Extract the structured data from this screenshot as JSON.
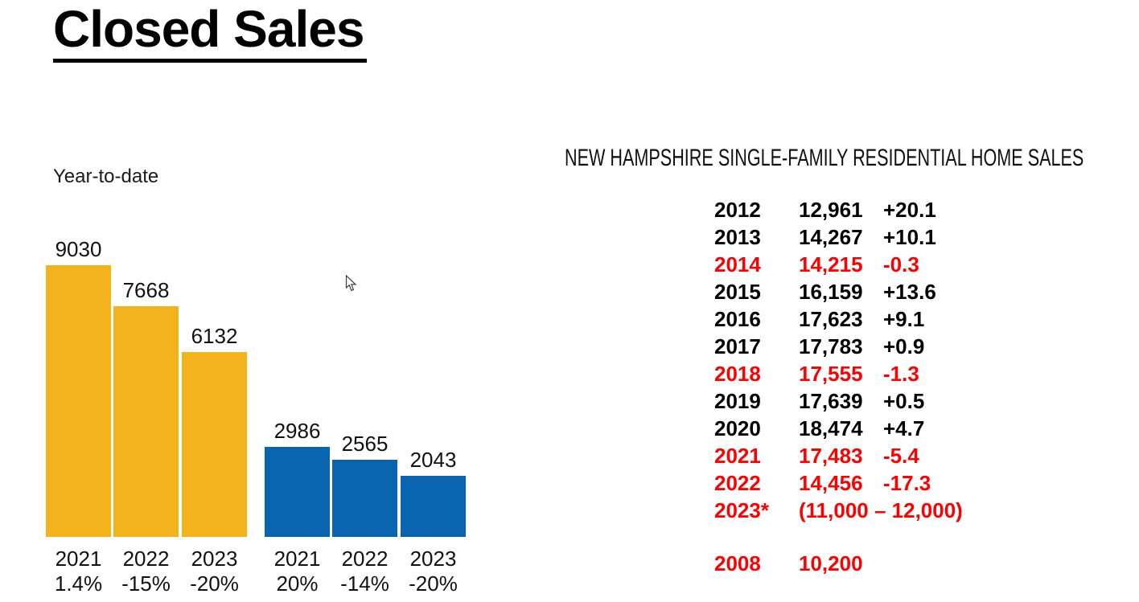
{
  "slide_title": "Closed Sales",
  "chart_data": {
    "type": "bar",
    "title": "Closed Sales",
    "subtitle": "Year-to-date",
    "ylim": [
      0,
      9030
    ],
    "axes_hidden": true,
    "grid": false,
    "legend": "none",
    "series": [
      {
        "group": "year-to-date-gold",
        "color": "#F2B31C",
        "bars": [
          {
            "year": "2021",
            "value": 9030,
            "pct_change_label": "1.4%"
          },
          {
            "year": "2022",
            "value": 7668,
            "pct_change_label": "-15%"
          },
          {
            "year": "2023",
            "value": 6132,
            "pct_change_label": "-20%"
          }
        ]
      },
      {
        "group": "year-to-date-blue",
        "color": "#0965AF",
        "bars": [
          {
            "year": "2021",
            "value": 2986,
            "pct_change_label": "20%"
          },
          {
            "year": "2022",
            "value": 2565,
            "pct_change_label": "-14%"
          },
          {
            "year": "2023",
            "value": 2043,
            "pct_change_label": "-20%"
          }
        ]
      }
    ]
  },
  "sales_table": {
    "heading": "NEW HAMPSHIRE SINGLE-FAMILY RESIDENTIAL HOME SALES",
    "text_color": "#000000",
    "highlight_color": "#FF0000",
    "rows": [
      {
        "year": "2012",
        "value": "12,961",
        "change": "+20.1",
        "highlight": false
      },
      {
        "year": "2013",
        "value": "14,267",
        "change": "+10.1",
        "highlight": false
      },
      {
        "year": "2014",
        "value": "14,215",
        "change": "-0.3",
        "highlight": true
      },
      {
        "year": "2015",
        "value": "16,159",
        "change": "+13.6",
        "highlight": false
      },
      {
        "year": "2016",
        "value": "17,623",
        "change": "+9.1",
        "highlight": false
      },
      {
        "year": "2017",
        "value": "17,783",
        "change": "+0.9",
        "highlight": false
      },
      {
        "year": "2018",
        "value": "17,555",
        "change": "-1.3",
        "highlight": true
      },
      {
        "year": "2019",
        "value": "17,639",
        "change": "+0.5",
        "highlight": false
      },
      {
        "year": "2020",
        "value": "18,474",
        "change": "+4.7",
        "highlight": false
      },
      {
        "year": "2021",
        "value": "17,483",
        "change": "-5.4",
        "highlight": true
      },
      {
        "year": "2022",
        "value": "14,456",
        "change": "-17.3",
        "highlight": true
      },
      {
        "year": "2023*",
        "value": "(11,000 – 12,000)",
        "change": "",
        "highlight": true
      }
    ],
    "footer_row": {
      "year": "2008",
      "value": "10,200",
      "change": "",
      "highlight": true
    }
  },
  "cursor": {
    "icon": "mouse-pointer-icon"
  }
}
